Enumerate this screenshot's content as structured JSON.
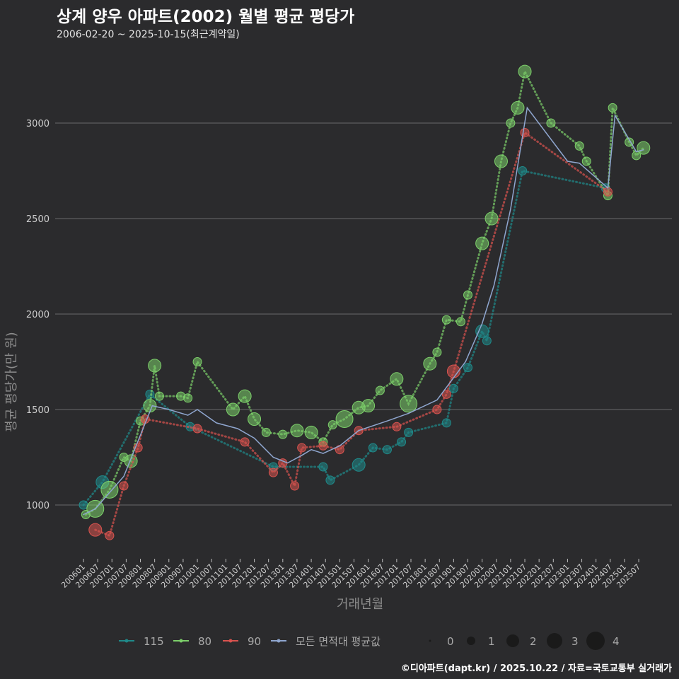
{
  "title": "상계 양우 아파트(2002) 월별 평균 평당가",
  "subtitle": "2006-02-20 ~ 2025-10-15(최근계약일)",
  "footer": "©디아파트(dapt.kr) / 2025.10.22 / 자료=국토교통부 실거래가",
  "chart_data": {
    "type": "line",
    "title": "상계 양우 아파트(2002) 월별 평균 평당가",
    "xlabel": "거래년월",
    "ylabel": "평균 평당가(만 원)",
    "ylim": [
      780,
      3330
    ],
    "yticks": [
      1000,
      1500,
      2000,
      2500,
      3000
    ],
    "xticks": [
      "200601",
      "200607",
      "200701",
      "200707",
      "200801",
      "200807",
      "200901",
      "200907",
      "201001",
      "201007",
      "201101",
      "201107",
      "201201",
      "201207",
      "201301",
      "201307",
      "201401",
      "201407",
      "201501",
      "201507",
      "201601",
      "201607",
      "201701",
      "201707",
      "201801",
      "201807",
      "201901",
      "201907",
      "202001",
      "202007",
      "202101",
      "202107",
      "202201",
      "202207",
      "202301",
      "202307",
      "202401",
      "202407",
      "202501",
      "202507"
    ],
    "grid": true,
    "legend_position": "bottom",
    "series": [
      {
        "name": "115",
        "color": "#1f8a8a",
        "points": [
          [
            "200601",
            1000,
            1
          ],
          [
            "200609",
            1120,
            2
          ],
          [
            "200805",
            1580,
            1
          ],
          [
            "200910",
            1410,
            1
          ],
          [
            "201209",
            1200,
            1
          ],
          [
            "201406",
            1200,
            1
          ],
          [
            "201409",
            1130,
            1
          ],
          [
            "201509",
            1210,
            2
          ],
          [
            "201603",
            1300,
            1
          ],
          [
            "201609",
            1290,
            1
          ],
          [
            "201703",
            1330,
            1
          ],
          [
            "201706",
            1380,
            1
          ],
          [
            "201810",
            1430,
            1
          ],
          [
            "201901",
            1610,
            1
          ],
          [
            "201907",
            1720,
            1
          ],
          [
            "202001",
            1910,
            2
          ],
          [
            "202003",
            1860,
            1
          ],
          [
            "202106",
            2750,
            1
          ],
          [
            "202405",
            2660,
            1
          ]
        ]
      },
      {
        "name": "80",
        "color": "#7ccf6a",
        "points": [
          [
            "200602",
            950,
            1
          ],
          [
            "200606",
            980,
            3
          ],
          [
            "200612",
            1080,
            3
          ],
          [
            "200706",
            1250,
            1
          ],
          [
            "200709",
            1230,
            2
          ],
          [
            "200801",
            1440,
            1
          ],
          [
            "200805",
            1520,
            2
          ],
          [
            "200807",
            1730,
            2
          ],
          [
            "200809",
            1570,
            1
          ],
          [
            "200906",
            1570,
            1
          ],
          [
            "200909",
            1560,
            1
          ],
          [
            "201001",
            1750,
            1
          ],
          [
            "201104",
            1500,
            2
          ],
          [
            "201109",
            1570,
            2
          ],
          [
            "201201",
            1450,
            2
          ],
          [
            "201206",
            1380,
            1
          ],
          [
            "201301",
            1370,
            1
          ],
          [
            "201307",
            1390,
            2
          ],
          [
            "201401",
            1380,
            2
          ],
          [
            "201406",
            1330,
            1
          ],
          [
            "201410",
            1420,
            1
          ],
          [
            "201503",
            1450,
            3
          ],
          [
            "201509",
            1510,
            2
          ],
          [
            "201601",
            1520,
            2
          ],
          [
            "201606",
            1600,
            1
          ],
          [
            "201701",
            1660,
            2
          ],
          [
            "201706",
            1530,
            3
          ],
          [
            "201803",
            1740,
            2
          ],
          [
            "201806",
            1800,
            1
          ],
          [
            "201810",
            1970,
            1
          ],
          [
            "201904",
            1960,
            1
          ],
          [
            "201907",
            2100,
            1
          ],
          [
            "202001",
            2370,
            2
          ],
          [
            "202005",
            2500,
            2
          ],
          [
            "202009",
            2800,
            2
          ],
          [
            "202101",
            3000,
            1
          ],
          [
            "202104",
            3080,
            2
          ],
          [
            "202107",
            3270,
            2
          ],
          [
            "202206",
            3000,
            1
          ],
          [
            "202306",
            2880,
            1
          ],
          [
            "202309",
            2800,
            1
          ],
          [
            "202406",
            2620,
            1
          ],
          [
            "202408",
            3080,
            1
          ],
          [
            "202503",
            2900,
            1
          ],
          [
            "202506",
            2830,
            1
          ],
          [
            "202509",
            2870,
            2
          ]
        ]
      },
      {
        "name": "90",
        "color": "#d9534f",
        "points": [
          [
            "200606",
            870,
            2
          ],
          [
            "200612",
            840,
            1
          ],
          [
            "200706",
            1100,
            1
          ],
          [
            "200712",
            1300,
            1
          ],
          [
            "200803",
            1450,
            1
          ],
          [
            "201001",
            1400,
            1
          ],
          [
            "201109",
            1330,
            1
          ],
          [
            "201209",
            1170,
            1
          ],
          [
            "201301",
            1220,
            1
          ],
          [
            "201306",
            1100,
            1
          ],
          [
            "201309",
            1300,
            1
          ],
          [
            "201406",
            1310,
            1
          ],
          [
            "201501",
            1290,
            1
          ],
          [
            "201509",
            1390,
            1
          ],
          [
            "201701",
            1410,
            1
          ],
          [
            "201806",
            1500,
            1
          ],
          [
            "201810",
            1580,
            1
          ],
          [
            "201901",
            1700,
            2
          ],
          [
            "202107",
            2950,
            1
          ],
          [
            "202406",
            2640,
            1
          ]
        ]
      },
      {
        "name": "모든 면적대 평균값",
        "color": "#8fa6cf",
        "points": [
          [
            "200601",
            950
          ],
          [
            "200606",
            980
          ],
          [
            "200706",
            1150
          ],
          [
            "200806",
            1520
          ],
          [
            "200901",
            1500
          ],
          [
            "200909",
            1470
          ],
          [
            "201001",
            1500
          ],
          [
            "201009",
            1430
          ],
          [
            "201106",
            1400
          ],
          [
            "201201",
            1350
          ],
          [
            "201209",
            1250
          ],
          [
            "201303",
            1220
          ],
          [
            "201309",
            1260
          ],
          [
            "201401",
            1290
          ],
          [
            "201406",
            1270
          ],
          [
            "201501",
            1310
          ],
          [
            "201509",
            1390
          ],
          [
            "201609",
            1440
          ],
          [
            "201706",
            1480
          ],
          [
            "201806",
            1550
          ],
          [
            "201906",
            1750
          ],
          [
            "202001",
            1950
          ],
          [
            "202006",
            2150
          ],
          [
            "202101",
            2550
          ],
          [
            "202108",
            3080
          ],
          [
            "202301",
            2800
          ],
          [
            "202306",
            2790
          ],
          [
            "202406",
            2660
          ],
          [
            "202409",
            3040
          ],
          [
            "202506",
            2850
          ],
          [
            "202509",
            2860
          ]
        ]
      }
    ],
    "size_legend": [
      "0",
      "1",
      "2",
      "3",
      "4"
    ]
  }
}
